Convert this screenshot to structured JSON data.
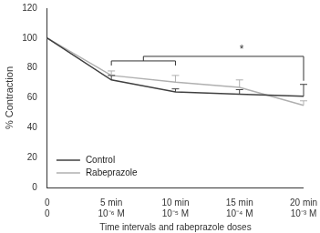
{
  "chart_data": {
    "type": "line",
    "categories": [
      "0",
      "5 min",
      "10 min",
      "15 min",
      "20 min"
    ],
    "dose_labels": [
      "0",
      "10⁻⁶ M",
      "10⁻⁵ M",
      "10⁻⁴ M",
      "10⁻³ M"
    ],
    "x_label": "Time intervals and rabeprazole doses",
    "y_label": "% Contraction",
    "series": [
      {
        "name": "Control",
        "color": "#404040",
        "values": [
          100,
          72,
          64,
          62.5,
          61
        ],
        "errors": [
          0,
          3,
          2,
          3,
          8
        ]
      },
      {
        "name": "Rabeprazole",
        "color": "#b0b0b0",
        "values": [
          100,
          75,
          70.5,
          67,
          55
        ],
        "errors": [
          0,
          3,
          4.5,
          5,
          3
        ]
      }
    ],
    "annotation": {
      "text": "*",
      "from": [
        "5 min",
        "10 min"
      ],
      "to": "20 min"
    },
    "ylim": [
      0,
      120
    ],
    "yticks": [
      0,
      20,
      40,
      60,
      80,
      100,
      120
    ],
    "grid": false,
    "legend": "lower left"
  }
}
